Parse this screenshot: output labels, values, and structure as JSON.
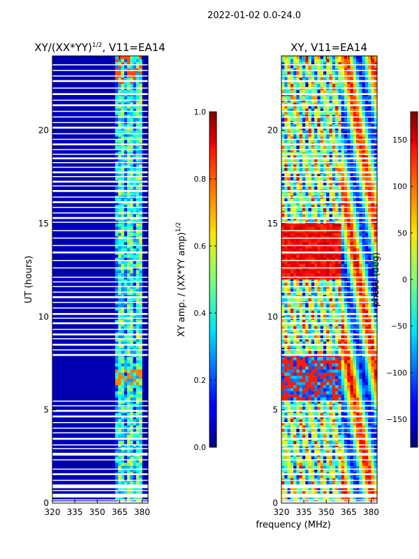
{
  "figure": {
    "suptitle": "2022-01-02 0.0-24.0",
    "xlabel": "frequency (MHz)"
  },
  "chart_data": [
    {
      "type": "heatmap",
      "title": "XY/(XX*YY)^1/2, V11=EA14",
      "title_main": "XY/(XX*YY)",
      "title_exp": "1/2",
      "title_tail": ", V11=EA14",
      "xlabel": "frequency (MHz)",
      "ylabel": "UT (hours)",
      "xlim": [
        320,
        384
      ],
      "ylim": [
        0,
        24
      ],
      "xticks": [
        320,
        335,
        350,
        365,
        380
      ],
      "yticks": [
        0,
        5,
        10,
        15,
        20
      ],
      "colorbar": {
        "label": "XY amp. / (XX*YY amp)^1/2",
        "label_main": "XY amp. / (XX*YY amp)",
        "label_exp": "1/2",
        "range": [
          0.0,
          1.0
        ],
        "ticks": [
          "0.0",
          "0.2",
          "0.4",
          "0.6",
          "0.8",
          "1.0"
        ],
        "colormap": "jet"
      },
      "description_values": {
        "background_value": 0.05,
        "active_band_mhz": [
          362,
          380
        ],
        "active_band_value_range": [
          0.2,
          0.75
        ]
      }
    },
    {
      "type": "heatmap",
      "title": "XY, V11=EA14",
      "xlabel": "frequency (MHz)",
      "ylabel": "",
      "xlim": [
        320,
        384
      ],
      "ylim": [
        0,
        24
      ],
      "xticks": [
        320,
        335,
        350,
        365,
        380
      ],
      "yticks": [
        0,
        5,
        10,
        15,
        20
      ],
      "colorbar": {
        "label": "phase (deg)",
        "range": [
          -180,
          180
        ],
        "ticks": [
          "150",
          "100",
          "50",
          "0",
          "−50",
          "−100",
          "−150"
        ],
        "tick_values": [
          150,
          100,
          50,
          0,
          -50,
          -100,
          -150
        ],
        "colormap": "jet"
      }
    }
  ],
  "flagged_hours": [
    [
      0.0,
      0.1
    ],
    [
      0.15,
      0.2
    ],
    [
      0.3,
      0.5
    ],
    [
      0.65,
      0.7
    ],
    [
      0.8,
      1.0
    ],
    [
      1.2,
      1.25
    ],
    [
      1.5,
      1.6
    ],
    [
      1.8,
      1.85
    ],
    [
      2.3,
      2.35
    ],
    [
      2.55,
      2.7
    ],
    [
      2.9,
      2.95
    ],
    [
      3.1,
      3.15
    ],
    [
      3.4,
      3.5
    ],
    [
      3.75,
      3.8
    ],
    [
      4.0,
      4.05
    ],
    [
      4.3,
      4.35
    ],
    [
      4.6,
      4.7
    ],
    [
      4.9,
      5.0
    ],
    [
      5.2,
      5.25
    ],
    [
      5.45,
      5.5
    ],
    [
      7.9,
      8.0
    ],
    [
      8.2,
      8.25
    ],
    [
      8.45,
      8.55
    ],
    [
      8.8,
      8.85
    ],
    [
      9.0,
      9.1
    ],
    [
      9.3,
      9.35
    ],
    [
      9.6,
      9.7
    ],
    [
      9.9,
      9.95
    ],
    [
      10.1,
      10.2
    ],
    [
      10.45,
      10.5
    ],
    [
      10.75,
      10.8
    ],
    [
      11.0,
      11.1
    ],
    [
      11.3,
      11.35
    ],
    [
      11.6,
      11.65
    ],
    [
      11.85,
      11.9
    ],
    [
      12.1,
      12.15
    ],
    [
      12.6,
      12.65
    ],
    [
      13.0,
      13.05
    ],
    [
      13.4,
      13.5
    ],
    [
      13.8,
      13.85
    ],
    [
      14.2,
      14.25
    ],
    [
      14.6,
      14.65
    ],
    [
      15.05,
      15.1
    ],
    [
      15.25,
      15.35
    ],
    [
      15.55,
      15.6
    ],
    [
      15.85,
      15.9
    ],
    [
      16.1,
      16.2
    ],
    [
      16.4,
      16.45
    ],
    [
      16.7,
      16.8
    ],
    [
      17.0,
      17.05
    ],
    [
      17.2,
      17.3
    ],
    [
      17.5,
      17.55
    ],
    [
      17.7,
      17.8
    ],
    [
      18.0,
      18.05
    ],
    [
      18.25,
      18.3
    ],
    [
      18.45,
      18.55
    ],
    [
      18.7,
      18.75
    ],
    [
      18.95,
      19.0
    ],
    [
      19.2,
      19.3
    ],
    [
      19.5,
      19.55
    ],
    [
      19.8,
      19.85
    ],
    [
      20.1,
      20.2
    ],
    [
      20.4,
      20.45
    ],
    [
      20.7,
      20.75
    ],
    [
      21.0,
      21.05
    ],
    [
      21.3,
      21.4
    ],
    [
      21.6,
      21.65
    ],
    [
      21.9,
      22.0
    ],
    [
      22.25,
      22.3
    ],
    [
      22.6,
      22.7
    ],
    [
      22.9,
      22.95
    ],
    [
      23.2,
      23.25
    ],
    [
      23.5,
      23.55
    ]
  ]
}
